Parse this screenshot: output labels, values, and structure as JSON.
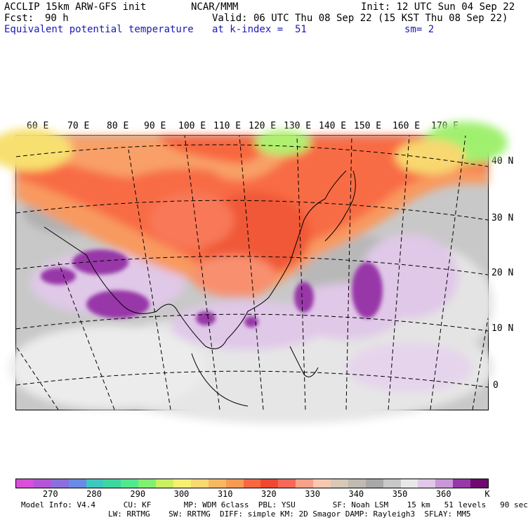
{
  "header": {
    "model": "ACCLIP 15km ARW-GFS init",
    "org": "NCAR/MMM",
    "init": "Init: 12 UTC Sun 04 Sep 22",
    "fcst_label": "Fcst:",
    "fcst_value": "90 h",
    "valid": "Valid: 06 UTC Thu 08 Sep 22 (15 KST Thu 08 Sep 22)",
    "field": "Equivalent potential temperature",
    "level": "at k-index =  51",
    "smoothing": "sm= 2"
  },
  "map": {
    "lon_labels": [
      "60 E",
      "70 E",
      "80 E",
      "90 E",
      "100 E",
      "110 E",
      "120 E",
      "130 E",
      "140 E",
      "150 E",
      "160 E",
      "170 E"
    ],
    "lat_labels": [
      "40 N",
      "30 N",
      "20 N",
      "10 N",
      "0"
    ]
  },
  "colorbar": {
    "colors": [
      "#d94fd9",
      "#b455d8",
      "#8a6fe0",
      "#6a8ae8",
      "#3cc8c0",
      "#3cd8a0",
      "#50e890",
      "#80f070",
      "#c8f060",
      "#f8f070",
      "#f8d870",
      "#f8b860",
      "#f89a50",
      "#f86840",
      "#f04830",
      "#f86858",
      "#f8a088",
      "#f8c8b0",
      "#d8c8b8",
      "#c0bab0",
      "#a8a8a8",
      "#c8c8c8",
      "#e8e8e8",
      "#e0c8e8",
      "#c898d8",
      "#9838a8",
      "#700870"
    ],
    "tick_labels": [
      "270",
      "280",
      "290",
      "300",
      "310",
      "320",
      "330",
      "340",
      "350",
      "360"
    ],
    "tick_values": [
      270,
      280,
      290,
      300,
      310,
      320,
      330,
      340,
      350,
      360
    ],
    "unit": "K",
    "vmin": 262,
    "vmax": 370
  },
  "footer": {
    "line1": "Model Info: V4.4      CU: KF       MP: WDM 6class  PBL: YSU        SF: Noah LSM    15 km   51 levels   90 sec",
    "line2": "LW: RRTMG    SW: RRTMG  DIFF: simple KM: 2D Smagor DAMP: Rayleigh3  SFLAY: MM5"
  }
}
